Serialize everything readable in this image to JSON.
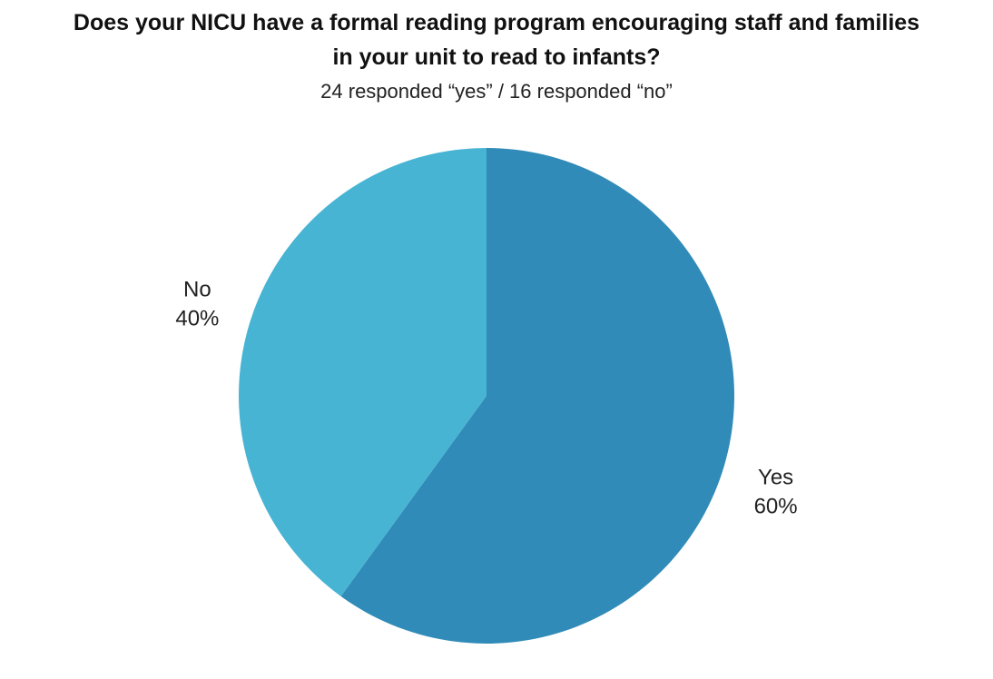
{
  "chart_data": {
    "type": "pie",
    "title_lines": [
      "Does your NICU have a formal reading program encouraging staff and families",
      "in your unit to read to infants?"
    ],
    "subtitle": "24 responded “yes” / 16 responded “no”",
    "slices": [
      {
        "label": "Yes",
        "value": 60,
        "display": "60%",
        "color": "#318bb8"
      },
      {
        "label": "No",
        "value": 40,
        "display": "40%",
        "color": "#47b4d3"
      }
    ],
    "start": "12 o'clock",
    "direction": "clockwise",
    "legend": "none"
  }
}
